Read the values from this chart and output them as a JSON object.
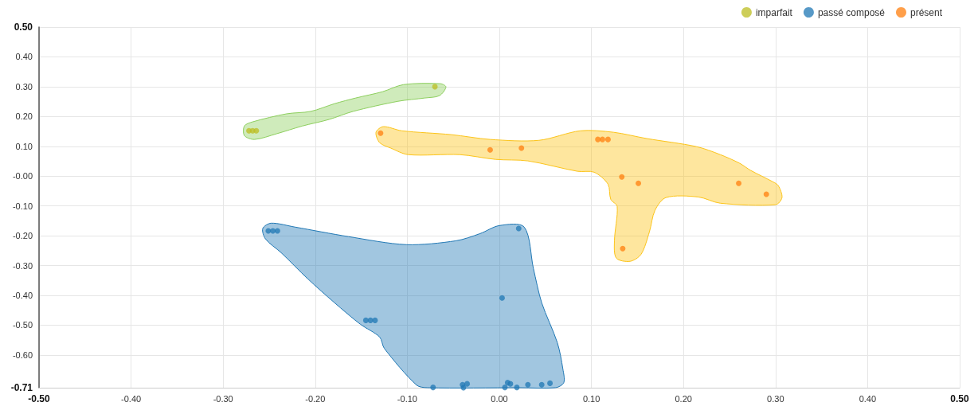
{
  "chart_data": {
    "type": "scatter",
    "legend": "top right",
    "grid": true,
    "marker": "circle",
    "xlim": [
      -0.5,
      0.5
    ],
    "xticks": [
      {
        "value": -0.5,
        "label": "-0.50"
      },
      {
        "value": -0.4,
        "label": "-0.40"
      },
      {
        "value": -0.3,
        "label": "-0.30"
      },
      {
        "value": -0.2,
        "label": "-0.20"
      },
      {
        "value": -0.1,
        "label": "-0.10"
      },
      {
        "value": 0,
        "label": "0.00"
      },
      {
        "value": 0.1,
        "label": "0.10"
      },
      {
        "value": 0.2,
        "label": "0.20"
      },
      {
        "value": 0.3,
        "label": "0.30"
      },
      {
        "value": 0.4,
        "label": "0.40"
      },
      {
        "value": 0.5,
        "label": "0.50"
      }
    ],
    "ylim": [
      -0.71,
      0.5
    ],
    "yticks": [
      {
        "value": -0.71,
        "label": "-0.71"
      },
      {
        "value": -0.6,
        "label": "-0.60"
      },
      {
        "value": -0.5,
        "label": "-0.50"
      },
      {
        "value": -0.4,
        "label": "-0.40"
      },
      {
        "value": -0.3,
        "label": "-0.30"
      },
      {
        "value": -0.2,
        "label": "-0.20"
      },
      {
        "value": -0.1,
        "label": "-0.10"
      },
      {
        "value": 0,
        "label": "-0.00"
      },
      {
        "value": 0.1,
        "label": "0.10"
      },
      {
        "value": 0.2,
        "label": "0.20"
      },
      {
        "value": 0.3,
        "label": "0.30"
      },
      {
        "value": 0.4,
        "label": "0.40"
      },
      {
        "value": 0.5,
        "label": "0.50"
      }
    ],
    "series": [
      {
        "type": "area",
        "marker": "none",
        "color": "#8dcf5e",
        "x": [
          -0.277,
          -0.268,
          -0.231,
          -0.205,
          -0.179,
          -0.156,
          -0.127,
          -0.104,
          -0.064,
          -0.058,
          -0.065,
          -0.081,
          -0.11,
          -0.159,
          -0.185,
          -0.214,
          -0.242,
          -0.266,
          -0.277
        ],
        "values": [
          0.168,
          0.182,
          0.209,
          0.217,
          0.243,
          0.262,
          0.283,
          0.307,
          0.31,
          0.299,
          0.27,
          0.262,
          0.251,
          0.217,
          0.19,
          0.168,
          0.142,
          0.123,
          0.136
        ]
      },
      {
        "type": "area",
        "marker": "none",
        "color": "#1f77b4",
        "x": [
          -0.257,
          -0.248,
          -0.222,
          -0.164,
          -0.101,
          -0.047,
          -0.021,
          0.0,
          0.027,
          0.037,
          0.046,
          0.063,
          0.069,
          0.07,
          0.061,
          0.022,
          -0.078,
          -0.09,
          -0.125,
          -0.13,
          -0.151,
          -0.179,
          -0.208,
          -0.237,
          -0.254
        ],
        "values": [
          -0.176,
          -0.158,
          -0.171,
          -0.203,
          -0.23,
          -0.217,
          -0.193,
          -0.166,
          -0.171,
          -0.31,
          -0.425,
          -0.559,
          -0.647,
          -0.693,
          -0.71,
          -0.71,
          -0.71,
          -0.701,
          -0.578,
          -0.54,
          -0.497,
          -0.425,
          -0.345,
          -0.257,
          -0.211
        ]
      },
      {
        "type": "area",
        "marker": "none",
        "color": "#fcc419",
        "x": [
          -0.134,
          -0.126,
          -0.106,
          -0.052,
          -0.01,
          0.043,
          0.088,
          0.124,
          0.16,
          0.214,
          0.24,
          0.261,
          0.273,
          0.297,
          0.303,
          0.307,
          0.3,
          0.24,
          0.216,
          0.181,
          0.169,
          0.163,
          0.154,
          0.142,
          0.127,
          0.125,
          0.128,
          0.121,
          0.118,
          0.103,
          0.085,
          0.031,
          -0.004,
          -0.043,
          -0.099,
          -0.118,
          -0.13
        ],
        "values": [
          0.147,
          0.166,
          0.152,
          0.139,
          0.123,
          0.12,
          0.152,
          0.147,
          0.126,
          0.099,
          0.072,
          0.043,
          0.019,
          -0.019,
          -0.032,
          -0.072,
          -0.096,
          -0.091,
          -0.07,
          -0.072,
          -0.115,
          -0.187,
          -0.262,
          -0.286,
          -0.275,
          -0.217,
          -0.102,
          -0.078,
          -0.027,
          0.013,
          0.016,
          0.051,
          0.056,
          0.072,
          0.072,
          0.094,
          0.112
        ]
      },
      {
        "name": "imparfait",
        "color": "#bcbd22",
        "x": [
          -0.272,
          -0.268,
          -0.264,
          -0.07
        ],
        "values": [
          0.152,
          0.152,
          0.152,
          0.3
        ]
      },
      {
        "name": "passé composé",
        "color": "#1f77b4",
        "x": [
          -0.251,
          -0.246,
          -0.241,
          -0.145,
          -0.14,
          -0.135,
          0.021,
          0.003,
          -0.072,
          -0.04,
          -0.039,
          -0.035,
          0.009,
          0.006,
          0.012,
          0.019,
          0.031,
          0.046,
          0.055
        ],
        "values": [
          -0.184,
          -0.184,
          -0.184,
          -0.484,
          -0.484,
          -0.484,
          -0.176,
          -0.409,
          -0.709,
          -0.7,
          -0.71,
          -0.697,
          -0.693,
          -0.709,
          -0.697,
          -0.709,
          -0.7,
          -0.7,
          -0.695
        ]
      },
      {
        "name": "présent",
        "color": "#ff7f0e",
        "x": [
          -0.129,
          -0.01,
          0.024,
          0.107,
          0.112,
          0.118,
          0.133,
          0.151,
          0.26,
          0.29,
          0.134
        ],
        "values": [
          0.144,
          0.088,
          0.094,
          0.123,
          0.123,
          0.123,
          -0.003,
          -0.024,
          -0.024,
          -0.061,
          -0.243
        ]
      }
    ]
  }
}
